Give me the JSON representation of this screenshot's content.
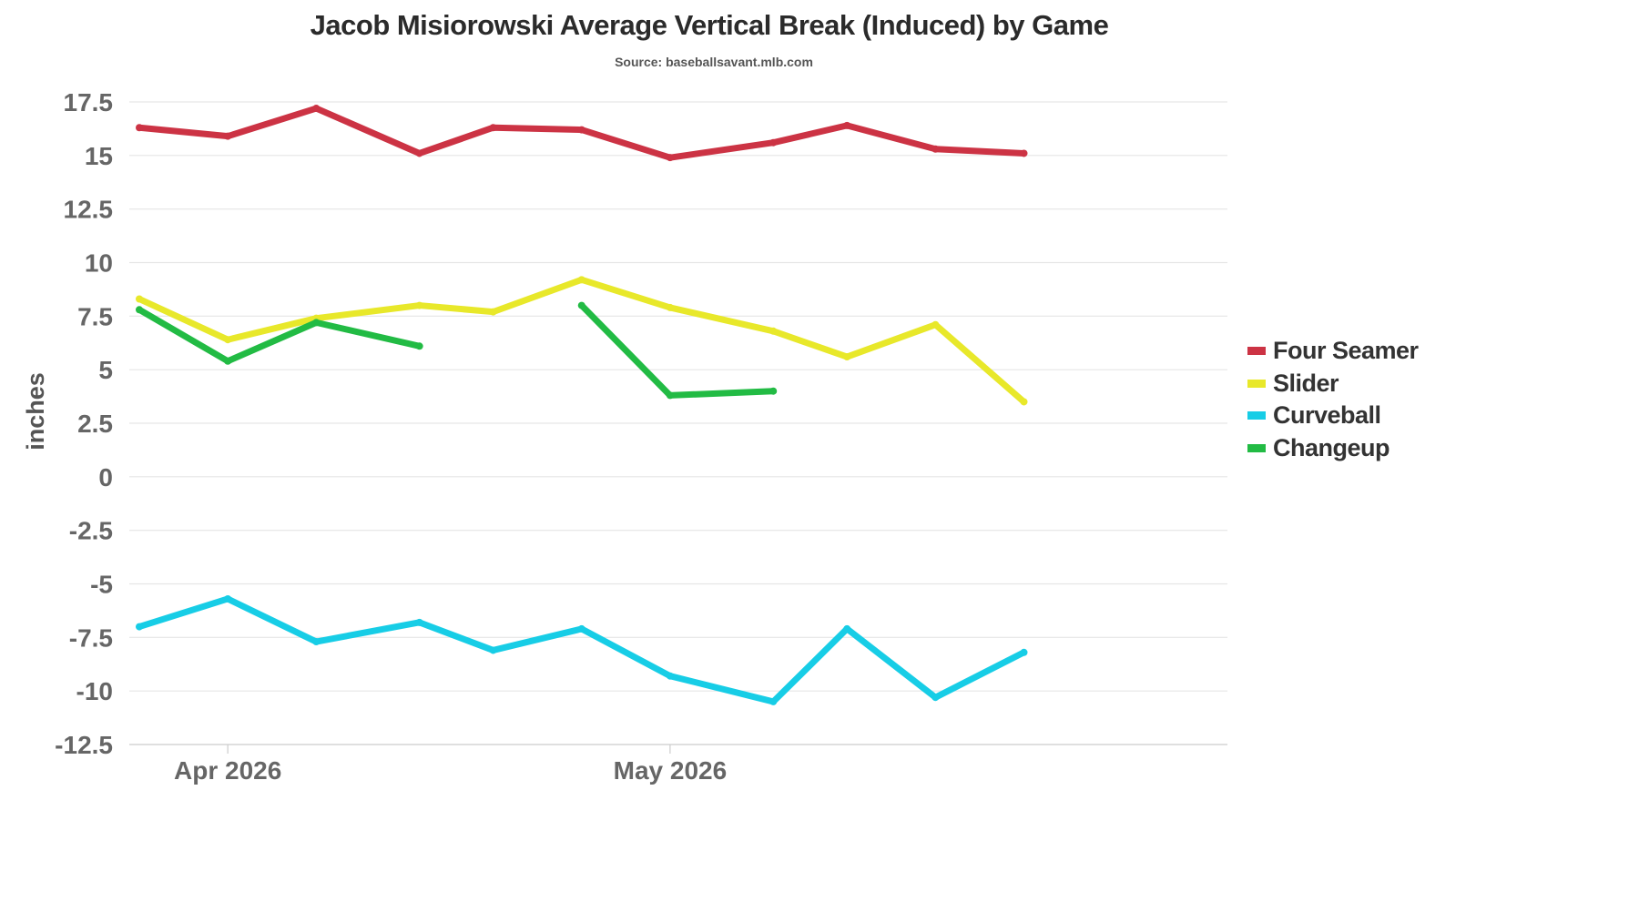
{
  "title": "Jacob Misiorowski Average Vertical Break (Induced) by Game",
  "subtitle": "Source: baseballsavant.mlb.com",
  "chart_data": {
    "type": "line",
    "title": "Jacob Misiorowski Average Vertical Break (Induced) by Game",
    "subtitle": "Source: baseballsavant.mlb.com",
    "xlabel": "",
    "ylabel": "inches",
    "ylim": [
      -12.5,
      17.5
    ],
    "yticks": [
      17.5,
      15,
      12.5,
      10,
      7.5,
      5,
      2.5,
      0,
      -2.5,
      -5,
      -7.5,
      -10,
      -12.5
    ],
    "ytick_labels": [
      "17.5",
      "15",
      "12.5",
      "10",
      "7.5",
      "5",
      "2.5",
      "0",
      "-2.5",
      "-5",
      "-7.5",
      "-10",
      "-12.5"
    ],
    "xlim": [
      "2026-03-26",
      "2026-06-07"
    ],
    "xticks": [
      "2026-04-01",
      "2026-05-01"
    ],
    "xtick_labels": [
      "Apr 2026",
      "May 2026"
    ],
    "x": [
      "2026-03-26",
      "2026-04-01",
      "2026-04-07",
      "2026-04-14",
      "2026-04-19",
      "2026-04-25",
      "2026-05-01",
      "2026-05-08",
      "2026-05-13",
      "2026-05-19",
      "2026-05-25"
    ],
    "series": [
      {
        "name": "Four Seamer",
        "color": "#cc3344",
        "values": [
          16.3,
          15.9,
          17.2,
          15.1,
          16.3,
          16.2,
          14.9,
          15.6,
          16.4,
          15.3,
          15.1
        ]
      },
      {
        "name": "Slider",
        "color": "#e8e82a",
        "values": [
          8.3,
          6.4,
          7.4,
          8.0,
          7.7,
          9.2,
          7.9,
          6.8,
          5.6,
          7.1,
          3.5
        ]
      },
      {
        "name": "Curveball",
        "color": "#17cde6",
        "values": [
          -7.0,
          -5.7,
          -7.7,
          -6.8,
          -8.1,
          -7.1,
          -9.3,
          -10.5,
          -7.1,
          -10.3,
          -8.2
        ]
      },
      {
        "name": "Changeup",
        "color": "#22bb44",
        "values": [
          7.8,
          5.4,
          7.2,
          6.1,
          null,
          8.0,
          3.8,
          4.0,
          null,
          null,
          null
        ]
      }
    ],
    "grid": true,
    "legend_position": "right"
  }
}
